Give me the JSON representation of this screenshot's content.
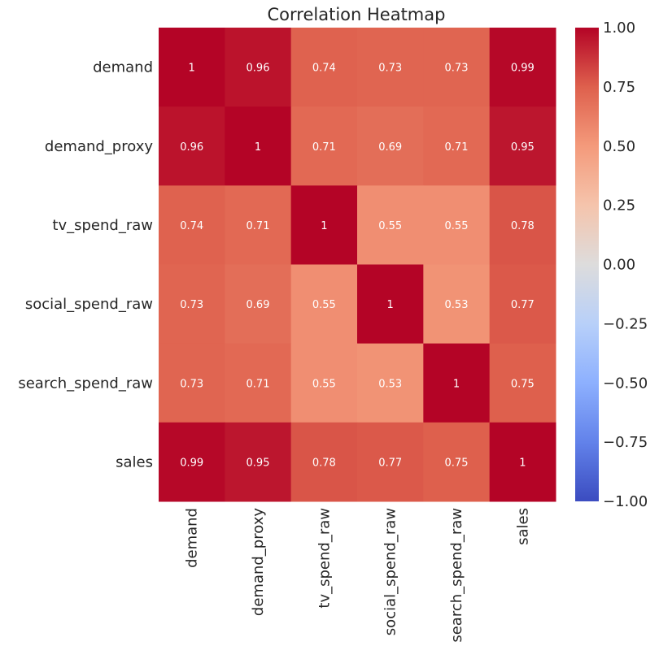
{
  "chart_data": {
    "type": "heatmap",
    "title": "Correlation Heatmap",
    "x_labels": [
      "demand",
      "demand_proxy",
      "tv_spend_raw",
      "social_spend_raw",
      "search_spend_raw",
      "sales"
    ],
    "y_labels": [
      "demand",
      "demand_proxy",
      "tv_spend_raw",
      "social_spend_raw",
      "search_spend_raw",
      "sales"
    ],
    "values": [
      [
        1,
        0.96,
        0.74,
        0.73,
        0.73,
        0.99
      ],
      [
        0.96,
        1,
        0.71,
        0.69,
        0.71,
        0.95
      ],
      [
        0.74,
        0.71,
        1,
        0.55,
        0.55,
        0.78
      ],
      [
        0.73,
        0.69,
        0.55,
        1,
        0.53,
        0.77
      ],
      [
        0.73,
        0.71,
        0.55,
        0.53,
        1,
        0.75
      ],
      [
        0.99,
        0.95,
        0.78,
        0.77,
        0.75,
        1
      ]
    ],
    "colormap": "coolwarm",
    "vmin": -1.0,
    "vmax": 1.0,
    "colorbar_ticks": [
      "1.00",
      "0.75",
      "0.50",
      "0.25",
      "0.00",
      "−0.25",
      "−0.50",
      "−0.75",
      "−1.00"
    ],
    "colorbar_values": [
      1.0,
      0.75,
      0.5,
      0.25,
      0.0,
      -0.25,
      -0.5,
      -0.75,
      -1.0
    ],
    "annotated": true,
    "grid": false,
    "colorbar_placement": "right"
  }
}
